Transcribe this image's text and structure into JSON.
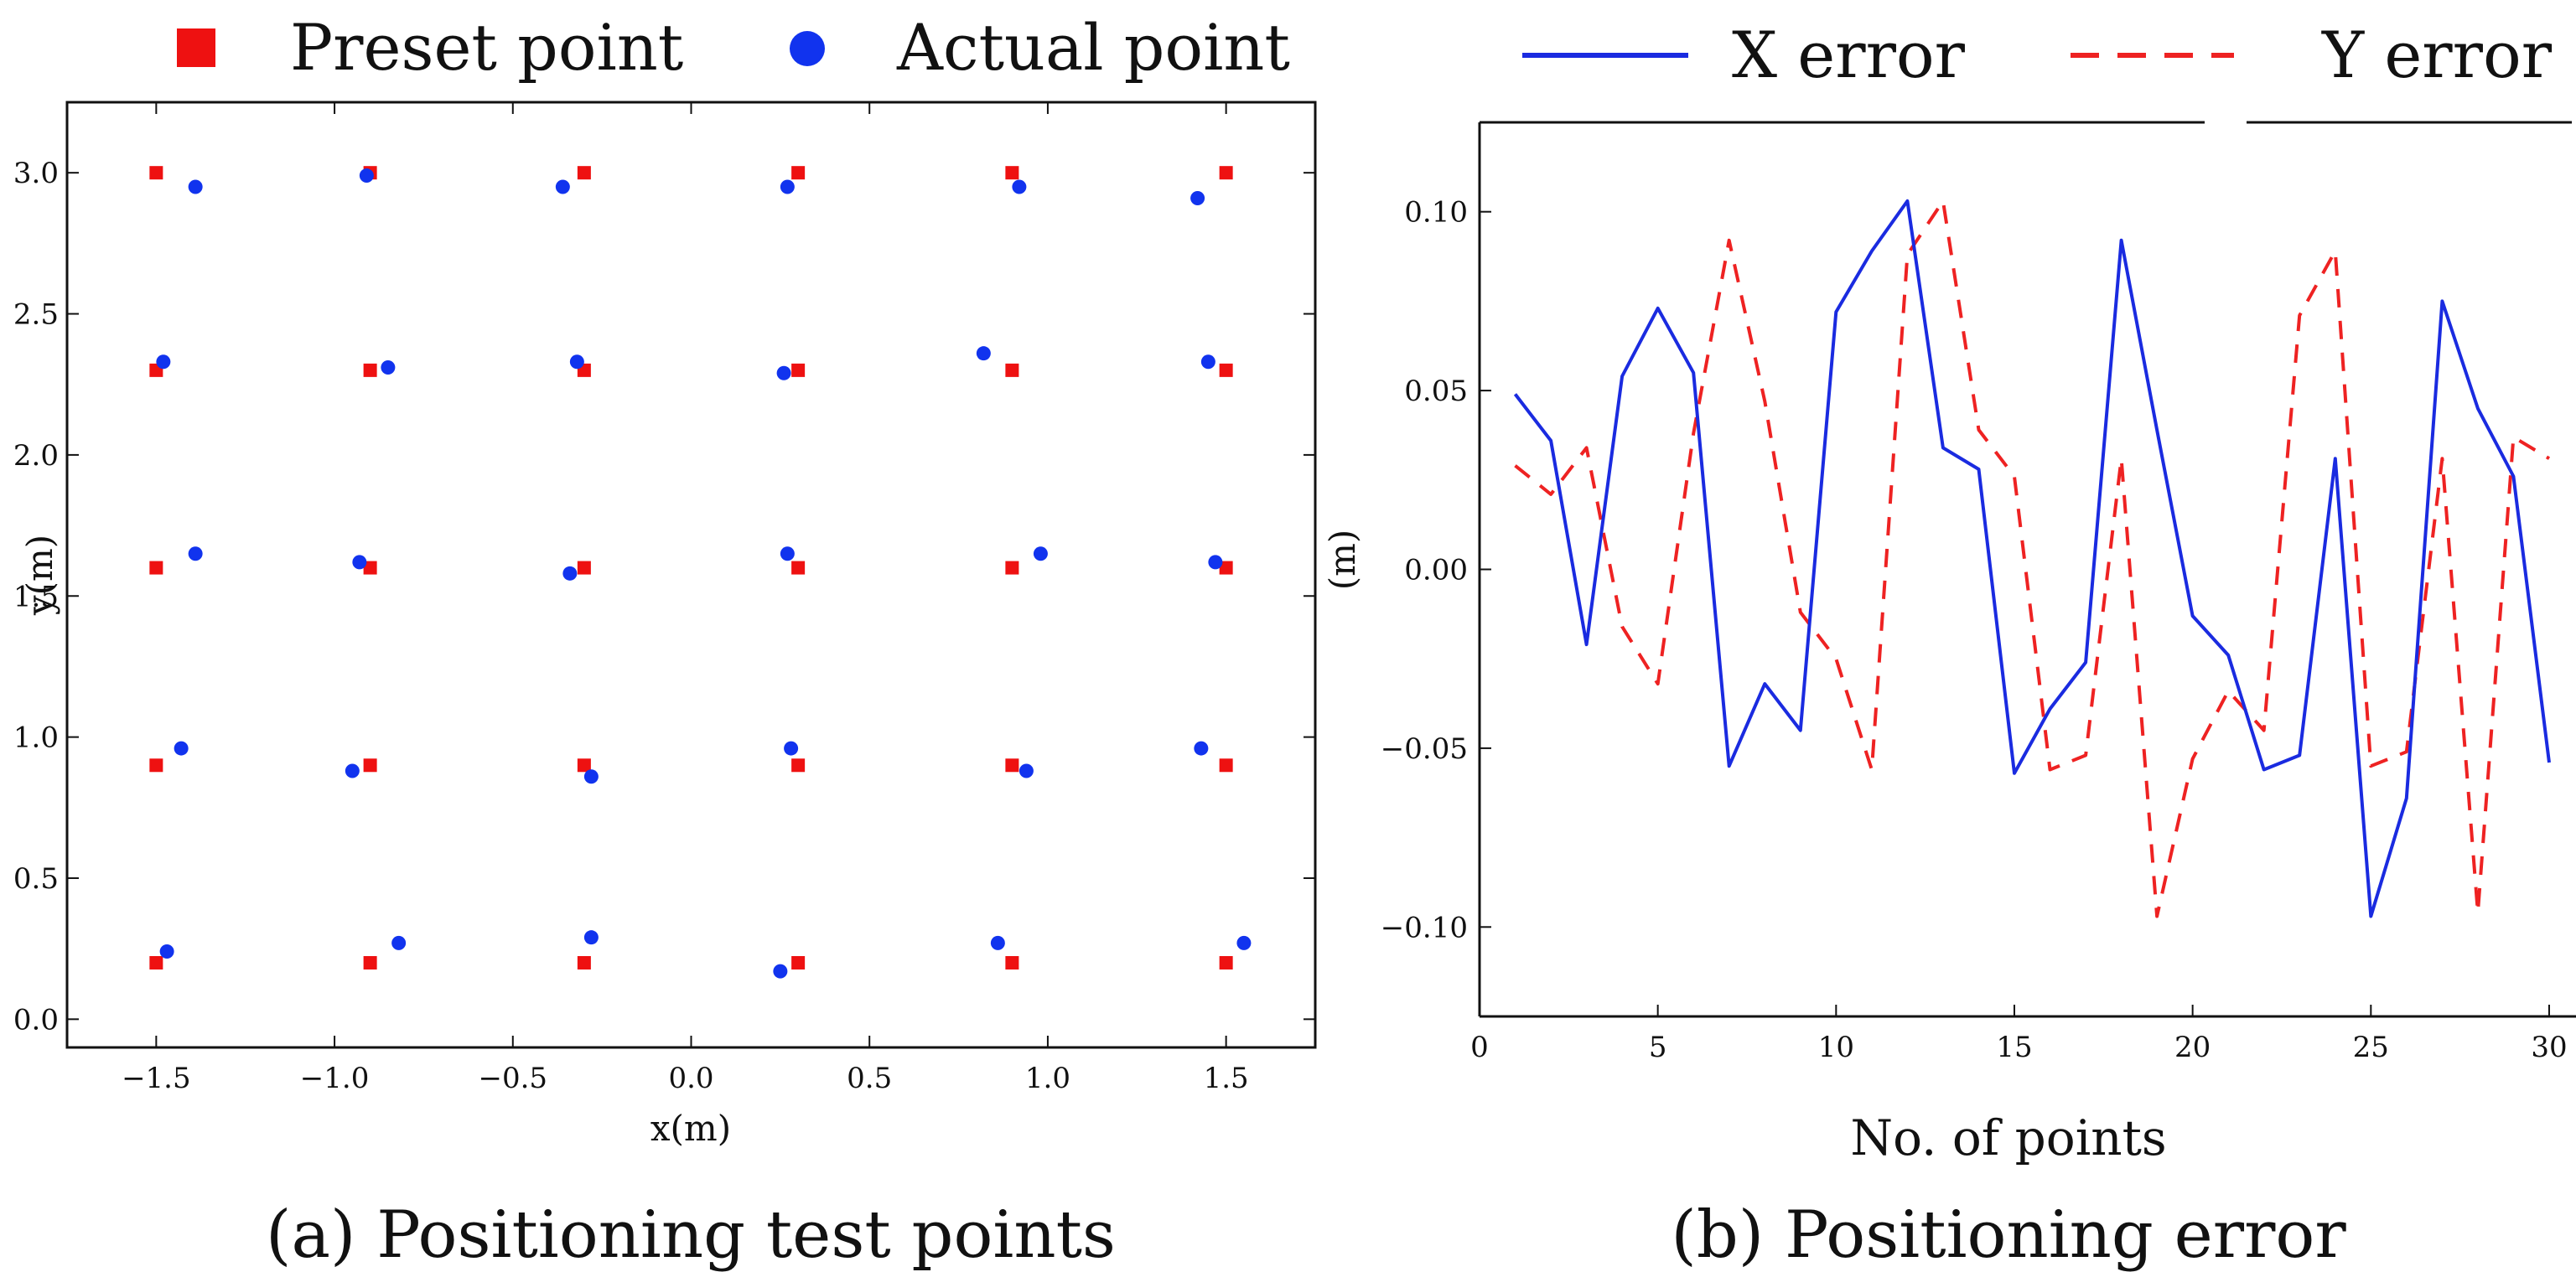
{
  "colors": {
    "preset": "#ee1111",
    "actual": "#1133ee",
    "x_error": "#1a2be0",
    "y_error": "#ee2222",
    "axis": "#111111"
  },
  "captions": {
    "a": "(a) Positioning test points",
    "b": "(b) Positioning error"
  },
  "chart_data": [
    {
      "id": "a",
      "type": "scatter",
      "title": "",
      "xlabel": "x(m)",
      "ylabel": "y(m)",
      "xlim": [
        -1.75,
        1.75
      ],
      "ylim": [
        -0.1,
        3.25
      ],
      "grid": false,
      "legend_position": "top",
      "xticks": [
        -1.5,
        -1.0,
        -0.5,
        0.0,
        0.5,
        1.0,
        1.5
      ],
      "xtick_labels": [
        "−1.5",
        "−1.0",
        "−0.5",
        "0.0",
        "0.5",
        "1.0",
        "1.5"
      ],
      "yticks": [
        0.0,
        0.5,
        1.0,
        1.5,
        2.0,
        2.5,
        3.0
      ],
      "ytick_labels": [
        "0.0",
        "0.5",
        "1.0",
        "1.5",
        "2.0",
        "2.5",
        "3.0"
      ],
      "series": [
        {
          "name": "Preset point",
          "marker": "square",
          "x": [
            -1.5,
            -0.9,
            -0.3,
            0.3,
            0.9,
            1.5,
            -1.5,
            -0.9,
            -0.3,
            0.3,
            0.9,
            1.5,
            -1.5,
            -0.9,
            -0.3,
            0.3,
            0.9,
            1.5,
            -1.5,
            -0.9,
            -0.3,
            0.3,
            0.9,
            1.5,
            -1.5,
            -0.9,
            -0.3,
            0.3,
            0.9,
            1.5
          ],
          "y": [
            3.0,
            3.0,
            3.0,
            3.0,
            3.0,
            3.0,
            2.3,
            2.3,
            2.3,
            2.3,
            2.3,
            2.3,
            1.6,
            1.6,
            1.6,
            1.6,
            1.6,
            1.6,
            0.9,
            0.9,
            0.9,
            0.9,
            0.9,
            0.9,
            0.2,
            0.2,
            0.2,
            0.2,
            0.2,
            0.2
          ]
        },
        {
          "name": "Actual point",
          "marker": "circle",
          "x": [
            -1.39,
            -0.91,
            -0.36,
            0.27,
            0.92,
            1.42,
            -1.48,
            -0.85,
            -0.32,
            0.26,
            0.82,
            1.45,
            -1.39,
            -0.93,
            -0.34,
            0.27,
            0.98,
            1.47,
            -1.43,
            -0.95,
            -0.28,
            0.28,
            0.94,
            1.43,
            -1.47,
            -0.82,
            -0.28,
            0.25,
            0.86,
            1.55
          ],
          "y": [
            2.95,
            2.99,
            2.95,
            2.95,
            2.95,
            2.91,
            2.33,
            2.31,
            2.33,
            2.29,
            2.36,
            2.33,
            1.65,
            1.62,
            1.58,
            1.65,
            1.65,
            1.62,
            0.96,
            0.88,
            0.86,
            0.96,
            0.88,
            0.96,
            0.24,
            0.27,
            0.29,
            0.17,
            0.27,
            0.27
          ]
        }
      ]
    },
    {
      "id": "b",
      "type": "line",
      "title": "",
      "xlabel": "No. of points",
      "ylabel": "(m)",
      "xlim": [
        0,
        30.8
      ],
      "ylim": [
        -0.125,
        0.125
      ],
      "grid": false,
      "legend_position": "top",
      "xticks": [
        0,
        5,
        10,
        15,
        20,
        25,
        30
      ],
      "xtick_labels": [
        "0",
        "5",
        "10",
        "15",
        "20",
        "25",
        "30"
      ],
      "yticks": [
        0.1,
        0.05,
        0.0,
        -0.05,
        -0.1
      ],
      "ytick_labels": [
        "0.10",
        "0.05",
        "0.00",
        "−0.05",
        "−0.10"
      ],
      "x": [
        1,
        2,
        3,
        4,
        5,
        6,
        7,
        8,
        9,
        10,
        11,
        12,
        13,
        14,
        15,
        16,
        17,
        18,
        19,
        20,
        21,
        22,
        23,
        24,
        25,
        26,
        27,
        28,
        29,
        30
      ],
      "series": [
        {
          "name": "X error",
          "style": "solid",
          "values": [
            0.049,
            0.036,
            -0.021,
            0.054,
            0.073,
            0.055,
            -0.055,
            -0.032,
            -0.045,
            0.072,
            0.089,
            0.103,
            0.034,
            0.028,
            -0.057,
            -0.039,
            -0.026,
            0.092,
            0.039,
            -0.013,
            -0.024,
            -0.056,
            -0.052,
            0.031,
            -0.097,
            -0.064,
            0.075,
            0.045,
            0.026,
            -0.054
          ]
        },
        {
          "name": "Y error",
          "style": "dashed",
          "values": [
            0.029,
            0.021,
            0.034,
            -0.016,
            -0.032,
            0.038,
            0.092,
            0.047,
            -0.012,
            -0.025,
            -0.056,
            0.088,
            0.103,
            0.039,
            0.026,
            -0.056,
            -0.052,
            0.031,
            -0.097,
            -0.053,
            -0.034,
            -0.045,
            0.071,
            0.089,
            -0.055,
            -0.051,
            0.031,
            -0.096,
            0.037,
            0.031
          ]
        }
      ]
    }
  ]
}
